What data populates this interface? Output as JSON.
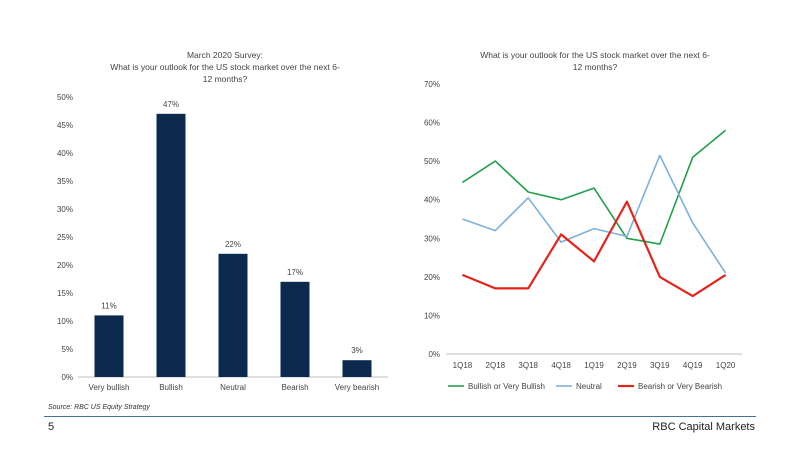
{
  "chart_data": [
    {
      "type": "bar",
      "title_line1": "March 2020 Survey:",
      "title_line2": "What is your outlook for the US stock market over the next 6-",
      "title_line3": "12 months?",
      "categories": [
        "Very bullish",
        "Bullish",
        "Neutral",
        "Bearish",
        "Very bearish"
      ],
      "values": [
        11,
        47,
        22,
        17,
        3
      ],
      "data_labels": [
        "11%",
        "47%",
        "22%",
        "17%",
        "3%"
      ],
      "ylim": [
        0,
        50
      ],
      "yticks": [
        "0%",
        "5%",
        "10%",
        "15%",
        "20%",
        "25%",
        "30%",
        "35%",
        "40%",
        "45%",
        "50%"
      ],
      "color": "#0b2a4e"
    },
    {
      "type": "line",
      "title_line1": "What is your outlook for the US stock market over the next 6-",
      "title_line2": "12 months?",
      "categories": [
        "1Q18",
        "2Q18",
        "3Q18",
        "4Q18",
        "1Q19",
        "2Q19",
        "3Q19",
        "4Q19",
        "1Q20"
      ],
      "ylim": [
        0,
        70
      ],
      "yticks": [
        "0%",
        "10%",
        "20%",
        "30%",
        "40%",
        "50%",
        "60%",
        "70%"
      ],
      "series": [
        {
          "name": "Bullish or Very Bullish",
          "values": [
            44.5,
            50,
            42,
            40,
            43,
            30,
            28.5,
            51,
            58
          ],
          "color": "#22a04b"
        },
        {
          "name": "Neutral",
          "values": [
            35,
            32,
            40.5,
            29,
            32.5,
            30.5,
            51.5,
            34,
            21
          ],
          "color": "#7fb0d9"
        },
        {
          "name": "Bearish or Very Bearish",
          "values": [
            20.5,
            17,
            17,
            31,
            24,
            39.5,
            20,
            15,
            20.5
          ],
          "color": "#e3241b"
        }
      ]
    }
  ],
  "footer": {
    "source": "Source: RBC US Equity Strategy",
    "page_number": "5",
    "brand": "RBC Capital Markets"
  }
}
